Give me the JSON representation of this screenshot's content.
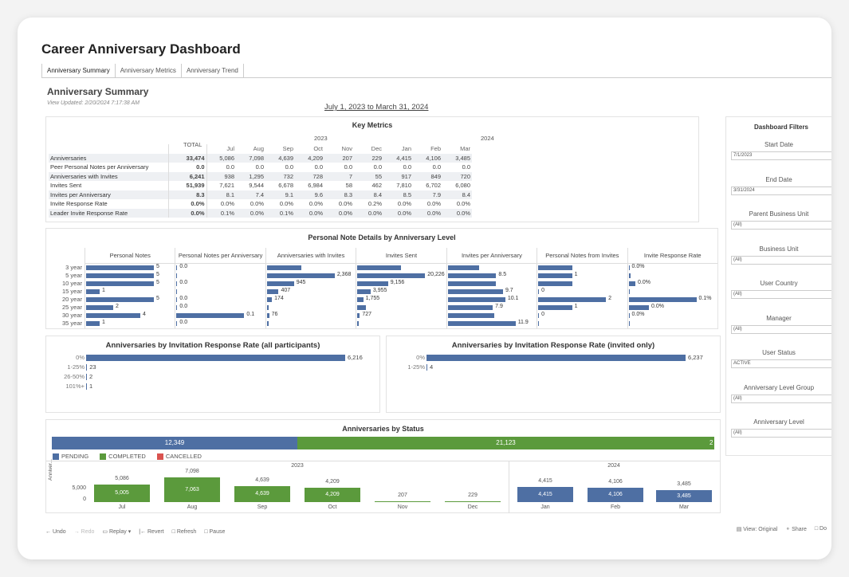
{
  "title": "Career Anniversary Dashboard",
  "tabs": [
    "Anniversary Summary",
    "Anniversary Metrics",
    "Anniversary Trend"
  ],
  "subtitle": "Anniversary Summary",
  "updated": "View Updated: 2/20/2024 7:17:38 AM",
  "date_range": "July 1, 2023 to March 31, 2024",
  "key_metrics": {
    "title": "Key Metrics",
    "total_label": "TOTAL",
    "year_2023": "2023",
    "year_2024": "2024",
    "months": [
      "Jul",
      "Aug",
      "Sep",
      "Oct",
      "Nov",
      "Dec",
      "Jan",
      "Feb",
      "Mar"
    ],
    "rows": [
      {
        "label": "Anniversaries",
        "total": "33,474",
        "values": [
          "5,086",
          "7,098",
          "4,639",
          "4,209",
          "207",
          "229",
          "4,415",
          "4,106",
          "3,485"
        ]
      },
      {
        "label": "Peer Personal Notes per Anniversary",
        "total": "0.0",
        "values": [
          "0.0",
          "0.0",
          "0.0",
          "0.0",
          "0.0",
          "0.0",
          "0.0",
          "0.0",
          "0.0"
        ]
      },
      {
        "label": "Anniversaries with Invites",
        "total": "6,241",
        "values": [
          "938",
          "1,295",
          "732",
          "728",
          "7",
          "55",
          "917",
          "849",
          "720"
        ]
      },
      {
        "label": "Invites Sent",
        "total": "51,939",
        "values": [
          "7,621",
          "9,544",
          "6,678",
          "6,984",
          "58",
          "462",
          "7,810",
          "6,702",
          "6,080"
        ]
      },
      {
        "label": "Invites per Anniversary",
        "total": "8.3",
        "values": [
          "8.1",
          "7.4",
          "9.1",
          "9.6",
          "8.3",
          "8.4",
          "8.5",
          "7.9",
          "8.4"
        ]
      },
      {
        "label": "Invite Response Rate",
        "total": "0.0%",
        "values": [
          "0.0%",
          "0.0%",
          "0.0%",
          "0.0%",
          "0.0%",
          "0.2%",
          "0.0%",
          "0.0%",
          "0.0%"
        ]
      },
      {
        "label": "Leader Invite Response Rate",
        "total": "0.0%",
        "values": [
          "0.1%",
          "0.0%",
          "0.1%",
          "0.0%",
          "0.0%",
          "0.0%",
          "0.0%",
          "0.0%",
          "0.0%"
        ]
      }
    ]
  },
  "personal_notes": {
    "title": "Personal Note Details by Anniversary Level",
    "levels": [
      "3 year",
      "5 year",
      "10 year",
      "15 year",
      "20 year",
      "25 year",
      "30 year",
      "35 year"
    ],
    "columns": [
      {
        "name": "Personal Notes",
        "max": 5,
        "values": [
          5,
          5,
          5,
          1,
          5,
          2,
          4,
          1
        ],
        "labels": [
          "5",
          "5",
          "5",
          "1",
          "5",
          "2",
          "4",
          "1"
        ]
      },
      {
        "name": "Personal Notes per Anniversary",
        "max": 0.1,
        "values": [
          0,
          0,
          0,
          0,
          0,
          0,
          0.1,
          0
        ],
        "labels": [
          "0.0",
          "",
          "0.0",
          "",
          "0.0",
          "0.0",
          "0.1",
          "0.0"
        ]
      },
      {
        "name": "Anniversaries with Invites",
        "max": 2368,
        "values": [
          1200,
          2368,
          945,
          407,
          174,
          20,
          76,
          5
        ],
        "labels": [
          "",
          "2,368",
          "945",
          "407",
          "174",
          "",
          "76",
          ""
        ]
      },
      {
        "name": "Invites Sent",
        "max": 20226,
        "values": [
          13000,
          20226,
          9156,
          3955,
          1755,
          2500,
          727,
          150
        ],
        "labels": [
          "",
          "20,226",
          "9,156",
          "3,955",
          "1,755",
          "",
          "727",
          ""
        ]
      },
      {
        "name": "Invites per Anniversary",
        "max": 11.9,
        "values": [
          5.5,
          8.5,
          8.5,
          9.7,
          10.1,
          7.9,
          8.2,
          11.9
        ],
        "labels": [
          "",
          "8.5",
          "",
          "9.7",
          "10.1",
          "7.9",
          "",
          "11.9"
        ]
      },
      {
        "name": "Personal Notes from Invites",
        "max": 2,
        "values": [
          1,
          1,
          1,
          0,
          2,
          1,
          0,
          0
        ],
        "labels": [
          "",
          "1",
          "",
          "0",
          "2",
          "1",
          "0",
          ""
        ]
      },
      {
        "name": "Invite Response Rate",
        "max": 0.1,
        "values": [
          0,
          0.002,
          0.01,
          0,
          0.1,
          0.03,
          0,
          0
        ],
        "labels": [
          "0.0%",
          "",
          "0.0%",
          "",
          "0.1%",
          "0.0%",
          "0.0%",
          ""
        ]
      }
    ]
  },
  "response_all": {
    "title": "Anniversaries by Invitation Response Rate (all participants)",
    "categories": [
      "0%",
      "1-25%",
      "26-50%",
      "101%+"
    ],
    "values": [
      6216,
      23,
      2,
      1
    ],
    "labels": [
      "6,216",
      "23",
      "2",
      "1"
    ]
  },
  "response_invited": {
    "title": "Anniversaries by Invitation Response Rate (invited only)",
    "categories": [
      "0%",
      "1-25%"
    ],
    "values": [
      6237,
      4
    ],
    "labels": [
      "6,237",
      "4"
    ]
  },
  "status": {
    "title": "Anniversaries by Status",
    "pending_total": "12,349",
    "completed_total": "21,123",
    "cancelled_total": "2",
    "legend": [
      "PENDING",
      "COMPLETED",
      "CANCELLED"
    ],
    "colors": {
      "pending": "#4e6fa3",
      "completed": "#5b9a3c",
      "cancelled": "#d9534f"
    },
    "y_axis": "Anniver...",
    "y_ticks": [
      "5,000",
      "0"
    ],
    "year_2023": "2023",
    "year_2024": "2024",
    "months": [
      "Jul",
      "Aug",
      "Sep",
      "Oct",
      "Nov",
      "Dec",
      "Jan",
      "Feb",
      "Mar"
    ],
    "totals": [
      "5,086",
      "7,098",
      "4,639",
      "4,209",
      "207",
      "229",
      "4,415",
      "4,106",
      "3,485"
    ],
    "segment_labels": [
      "5,005",
      "7,063",
      "4,639",
      "4,209",
      "",
      "",
      "4,415",
      "4,106",
      "3,485"
    ]
  },
  "filters": {
    "title": "Dashboard Filters",
    "items": [
      {
        "label": "Start Date",
        "value": "7/1/2023"
      },
      {
        "label": "End Date",
        "value": "3/31/2024"
      },
      {
        "label": "Parent Business Unit",
        "value": "(All)"
      },
      {
        "label": "Business Unit",
        "value": "(All)"
      },
      {
        "label": "User Country",
        "value": "(All)"
      },
      {
        "label": "Manager",
        "value": "(All)"
      },
      {
        "label": "User Status",
        "value": "ACTIVE"
      },
      {
        "label": "Anniversary Level Group",
        "value": "(All)"
      },
      {
        "label": "Anniversary Level",
        "value": "(All)"
      }
    ]
  },
  "toolbar": {
    "undo": "Undo",
    "redo": "Redo",
    "replay": "Replay",
    "revert": "Revert",
    "refresh": "Refresh",
    "pause": "Pause",
    "view": "View: Original",
    "share": "Share",
    "download": "Do"
  }
}
